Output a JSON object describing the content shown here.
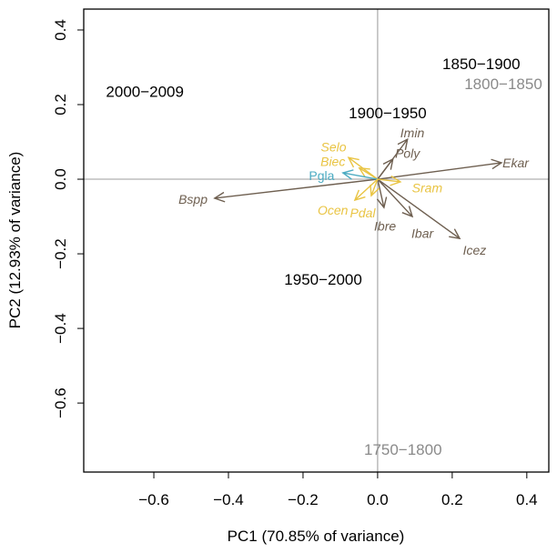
{
  "chart_data": {
    "type": "biplot",
    "xlabel": "PC1 (70.85% of variance)",
    "ylabel": "PC2 (12.93% of variance)",
    "xlim": [
      -0.788,
      0.459
    ],
    "ylim": [
      -0.785,
      0.456
    ],
    "xticks": [
      -0.6,
      -0.4,
      -0.2,
      0.0,
      0.2,
      0.4
    ],
    "xtick_labels": [
      "−0.6",
      "−0.4",
      "−0.2",
      "0.0",
      "0.2",
      "0.4"
    ],
    "yticks": [
      0.4,
      0.2,
      0.0,
      -0.2,
      -0.4,
      -0.6
    ],
    "ytick_labels": [
      "0.4",
      "0.2",
      "0.0",
      "−0.2",
      "−0.4",
      "−0.6"
    ],
    "colors": {
      "brown": "#6e5f50",
      "yellow": "#e9c443",
      "blue": "#4cabc2",
      "gray": "#8a8a8a",
      "black": "#000000"
    },
    "points": [
      {
        "label": "2000−2009",
        "x": -0.624,
        "y": 0.235,
        "color": "black"
      },
      {
        "label": "1850−1900",
        "x": 0.278,
        "y": 0.31,
        "color": "black"
      },
      {
        "label": "1800−1850",
        "x": 0.337,
        "y": 0.256,
        "color": "gray"
      },
      {
        "label": "1900−1950",
        "x": 0.027,
        "y": 0.178,
        "color": "black"
      },
      {
        "label": "1950−2000",
        "x": -0.146,
        "y": -0.268,
        "color": "black"
      },
      {
        "label": "1750−1800",
        "x": 0.068,
        "y": -0.724,
        "color": "gray"
      }
    ],
    "arrows": [
      {
        "label": "Ekar",
        "x": 0.332,
        "y": 0.044,
        "color": "brown",
        "lx": 0.37,
        "ly": 0.044
      },
      {
        "label": "Bspp",
        "x": -0.437,
        "y": -0.051,
        "color": "brown",
        "lx": -0.495,
        "ly": -0.054
      },
      {
        "label": "Icez",
        "x": 0.22,
        "y": -0.159,
        "color": "brown",
        "lx": 0.26,
        "ly": -0.19
      },
      {
        "label": "Ibar",
        "x": 0.093,
        "y": -0.1,
        "color": "brown",
        "lx": 0.12,
        "ly": -0.145
      },
      {
        "label": "Ibre",
        "x": 0.017,
        "y": -0.076,
        "color": "brown",
        "lx": 0.02,
        "ly": -0.125
      },
      {
        "label": "Imin",
        "x": 0.08,
        "y": 0.107,
        "color": "brown",
        "lx": 0.093,
        "ly": 0.125
      },
      {
        "label": "Poly",
        "x": 0.041,
        "y": 0.054,
        "color": "brown",
        "lx": 0.08,
        "ly": 0.07
      },
      {
        "label": "Selo",
        "x": -0.078,
        "y": 0.058,
        "color": "yellow",
        "lx": -0.118,
        "ly": 0.087
      },
      {
        "label": "Biec",
        "x": -0.049,
        "y": 0.03,
        "color": "yellow",
        "lx": -0.12,
        "ly": 0.048
      },
      {
        "label": "Pgla",
        "x": -0.093,
        "y": 0.017,
        "color": "blue",
        "lx": -0.15,
        "ly": 0.01
      },
      {
        "label": "Sram",
        "x": 0.061,
        "y": -0.007,
        "color": "yellow",
        "lx": 0.133,
        "ly": -0.023
      },
      {
        "label": "Ocen",
        "x": -0.061,
        "y": -0.056,
        "color": "yellow",
        "lx": -0.12,
        "ly": -0.083
      },
      {
        "label": "Pdal",
        "x": -0.017,
        "y": -0.044,
        "color": "yellow",
        "lx": -0.04,
        "ly": -0.09
      }
    ]
  }
}
